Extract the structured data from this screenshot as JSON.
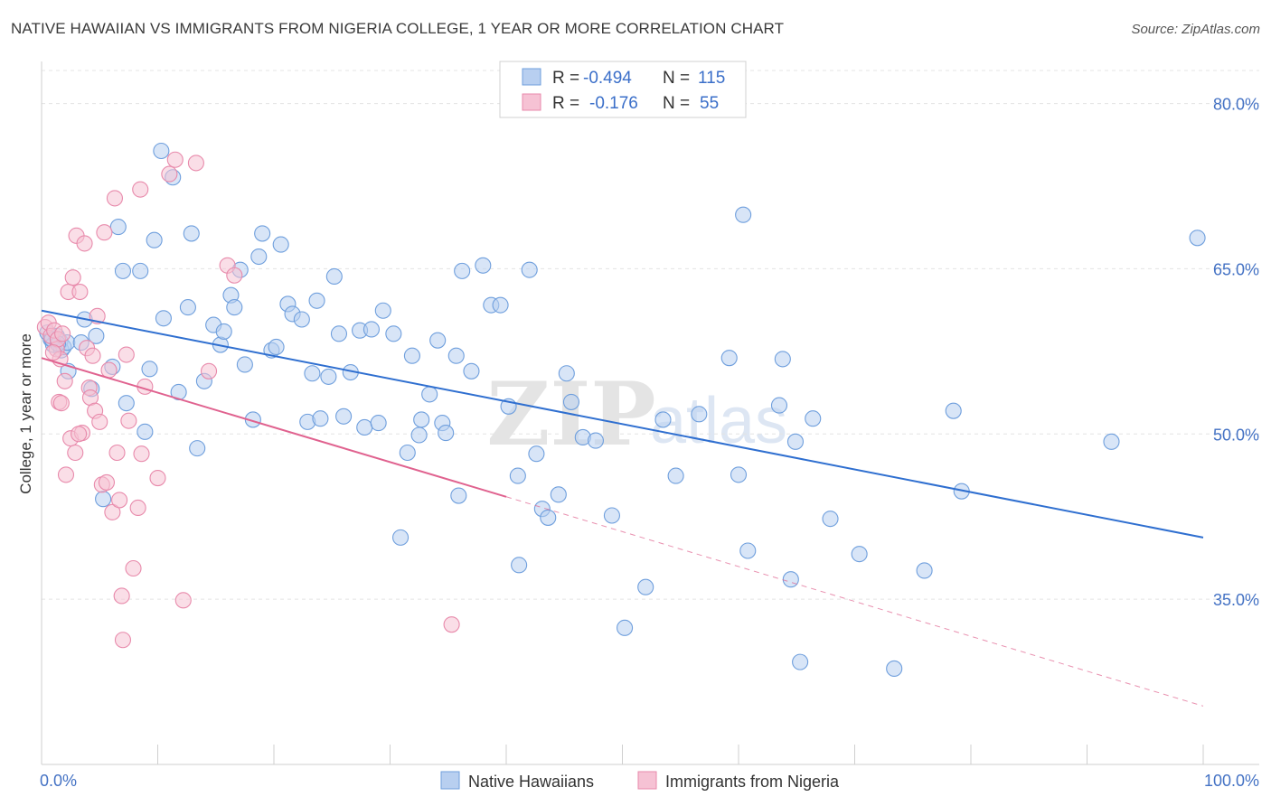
{
  "title": "NATIVE HAWAIIAN VS IMMIGRANTS FROM NIGERIA COLLEGE, 1 YEAR OR MORE CORRELATION CHART",
  "source": "Source: ZipAtlas.com",
  "watermark": {
    "zip": "ZIP",
    "atlas": "atlas"
  },
  "chart_data": {
    "type": "scatter",
    "title": "NATIVE HAWAIIAN VS IMMIGRANTS FROM NIGERIA COLLEGE, 1 YEAR OR MORE CORRELATION CHART",
    "xlabel": "",
    "ylabel": "College, 1 year or more",
    "xlim": [
      0,
      100
    ],
    "ylim": [
      20,
      83
    ],
    "x_tick_labels": [
      "0.0%",
      "100.0%"
    ],
    "y_ticks": [
      35,
      50,
      65,
      80
    ],
    "y_tick_labels": [
      "35.0%",
      "50.0%",
      "65.0%",
      "80.0%"
    ],
    "grid": true,
    "legend_position": "top-center",
    "stats": [
      {
        "series": "Native Hawaiians",
        "r_label": "R =",
        "r": "-0.494",
        "n_label": "N =",
        "n": "115"
      },
      {
        "series": "Immigrants from Nigeria",
        "r_label": "R =",
        "r": "-0.176",
        "n_label": "N =",
        "n": "55"
      }
    ],
    "series": [
      {
        "name": "Native Hawaiians",
        "color": "#6f9fdd",
        "fill": "#b8cff0",
        "line_color": "#2f6fd0",
        "trend": {
          "x0": 0,
          "y0": 61.2,
          "x1": 100,
          "y1": 40.6
        },
        "points": [
          [
            0.5,
            59.2
          ],
          [
            0.8,
            58.6
          ],
          [
            1.0,
            58.1
          ],
          [
            1.3,
            58.9
          ],
          [
            1.6,
            58.4
          ],
          [
            1.7,
            57.6
          ],
          [
            1.9,
            57.9
          ],
          [
            2.2,
            58.3
          ],
          [
            2.3,
            55.7
          ],
          [
            3.4,
            58.3
          ],
          [
            3.7,
            60.4
          ],
          [
            4.3,
            54.1
          ],
          [
            4.7,
            58.9
          ],
          [
            5.3,
            44.1
          ],
          [
            6.1,
            56.1
          ],
          [
            7.0,
            64.8
          ],
          [
            7.3,
            52.8
          ],
          [
            6.6,
            68.8
          ],
          [
            8.5,
            64.8
          ],
          [
            8.9,
            50.2
          ],
          [
            9.3,
            55.9
          ],
          [
            9.7,
            67.6
          ],
          [
            10.5,
            60.5
          ],
          [
            10.3,
            75.7
          ],
          [
            11.3,
            73.3
          ],
          [
            11.8,
            53.8
          ],
          [
            12.6,
            61.5
          ],
          [
            12.9,
            68.2
          ],
          [
            13.4,
            48.7
          ],
          [
            14.0,
            54.8
          ],
          [
            14.8,
            59.9
          ],
          [
            15.4,
            58.1
          ],
          [
            15.7,
            59.3
          ],
          [
            16.3,
            62.6
          ],
          [
            16.6,
            61.5
          ],
          [
            17.1,
            64.9
          ],
          [
            17.5,
            56.3
          ],
          [
            18.2,
            51.3
          ],
          [
            18.7,
            66.1
          ],
          [
            19.0,
            68.2
          ],
          [
            19.8,
            57.6
          ],
          [
            20.2,
            57.9
          ],
          [
            20.6,
            67.2
          ],
          [
            21.2,
            61.8
          ],
          [
            21.6,
            60.9
          ],
          [
            22.4,
            60.4
          ],
          [
            22.9,
            51.1
          ],
          [
            23.3,
            55.5
          ],
          [
            23.7,
            62.1
          ],
          [
            24.0,
            51.4
          ],
          [
            24.7,
            55.2
          ],
          [
            25.2,
            64.3
          ],
          [
            25.6,
            59.1
          ],
          [
            26.0,
            51.6
          ],
          [
            26.6,
            55.6
          ],
          [
            27.4,
            59.4
          ],
          [
            27.8,
            50.6
          ],
          [
            28.4,
            59.5
          ],
          [
            29.0,
            51.0
          ],
          [
            29.4,
            61.2
          ],
          [
            30.3,
            59.1
          ],
          [
            30.9,
            40.6
          ],
          [
            31.5,
            48.3
          ],
          [
            31.9,
            57.1
          ],
          [
            32.5,
            49.9
          ],
          [
            32.7,
            51.3
          ],
          [
            33.4,
            53.6
          ],
          [
            34.1,
            58.5
          ],
          [
            34.5,
            51.0
          ],
          [
            34.8,
            50.1
          ],
          [
            35.7,
            57.1
          ],
          [
            35.9,
            44.4
          ],
          [
            36.2,
            64.8
          ],
          [
            37.0,
            55.7
          ],
          [
            38.0,
            65.3
          ],
          [
            38.7,
            61.7
          ],
          [
            39.5,
            61.7
          ],
          [
            40.2,
            52.5
          ],
          [
            41.0,
            46.2
          ],
          [
            41.1,
            38.1
          ],
          [
            42.0,
            64.9
          ],
          [
            43.1,
            43.2
          ],
          [
            42.6,
            48.2
          ],
          [
            43.6,
            42.4
          ],
          [
            44.5,
            44.5
          ],
          [
            45.2,
            55.5
          ],
          [
            45.6,
            52.9
          ],
          [
            46.6,
            49.7
          ],
          [
            47.7,
            49.4
          ],
          [
            49.1,
            42.6
          ],
          [
            50.2,
            32.4
          ],
          [
            52.0,
            36.1
          ],
          [
            53.5,
            51.3
          ],
          [
            54.6,
            46.2
          ],
          [
            56.6,
            51.8
          ],
          [
            59.2,
            56.9
          ],
          [
            60.0,
            46.3
          ],
          [
            60.4,
            69.9
          ],
          [
            60.8,
            39.4
          ],
          [
            63.5,
            52.6
          ],
          [
            63.8,
            56.8
          ],
          [
            64.5,
            36.8
          ],
          [
            64.9,
            49.3
          ],
          [
            65.3,
            29.3
          ],
          [
            66.4,
            51.4
          ],
          [
            67.9,
            42.3
          ],
          [
            70.4,
            39.1
          ],
          [
            73.4,
            28.7
          ],
          [
            76.0,
            37.6
          ],
          [
            78.5,
            52.1
          ],
          [
            79.2,
            44.8
          ],
          [
            92.1,
            49.3
          ],
          [
            99.5,
            67.8
          ],
          [
            0.9,
            58.6
          ],
          [
            1.4,
            58.2
          ]
        ]
      },
      {
        "name": "Immigrants from Nigeria",
        "color": "#e88aab",
        "fill": "#f6c2d4",
        "line_color": "#e0628f",
        "trend": {
          "x0": 0,
          "y0": 56.9,
          "x1": 40.0,
          "y1": 44.3
        },
        "trend_dashed": {
          "x0": 40.0,
          "y0": 44.3,
          "x1": 100,
          "y1": 25.3
        },
        "points": [
          [
            0.3,
            59.7
          ],
          [
            0.6,
            60.1
          ],
          [
            0.8,
            58.9
          ],
          [
            1.1,
            59.4
          ],
          [
            1.3,
            57.7
          ],
          [
            1.6,
            56.8
          ],
          [
            1.4,
            58.6
          ],
          [
            1.8,
            59.1
          ],
          [
            1.5,
            52.9
          ],
          [
            1.7,
            52.8
          ],
          [
            2.0,
            54.8
          ],
          [
            2.1,
            46.3
          ],
          [
            2.3,
            62.9
          ],
          [
            2.5,
            49.6
          ],
          [
            2.7,
            64.2
          ],
          [
            2.9,
            48.3
          ],
          [
            3.0,
            68.0
          ],
          [
            3.3,
            62.9
          ],
          [
            3.5,
            50.1
          ],
          [
            3.7,
            67.3
          ],
          [
            3.9,
            57.8
          ],
          [
            4.1,
            54.2
          ],
          [
            4.2,
            53.3
          ],
          [
            4.4,
            57.1
          ],
          [
            4.6,
            52.1
          ],
          [
            4.8,
            60.7
          ],
          [
            5.0,
            51.1
          ],
          [
            5.2,
            45.4
          ],
          [
            5.4,
            68.3
          ],
          [
            5.6,
            45.6
          ],
          [
            5.8,
            55.8
          ],
          [
            6.1,
            42.9
          ],
          [
            6.3,
            71.4
          ],
          [
            6.5,
            48.3
          ],
          [
            6.7,
            44.0
          ],
          [
            6.9,
            35.3
          ],
          [
            7.0,
            31.3
          ],
          [
            7.3,
            57.2
          ],
          [
            7.5,
            51.2
          ],
          [
            7.9,
            37.8
          ],
          [
            8.3,
            43.3
          ],
          [
            8.5,
            72.2
          ],
          [
            8.6,
            48.2
          ],
          [
            8.9,
            54.3
          ],
          [
            10.0,
            46.0
          ],
          [
            11.0,
            73.6
          ],
          [
            11.5,
            74.9
          ],
          [
            12.2,
            34.9
          ],
          [
            13.3,
            74.6
          ],
          [
            14.4,
            55.7
          ],
          [
            16.0,
            65.3
          ],
          [
            16.6,
            64.4
          ],
          [
            35.3,
            32.7
          ],
          [
            3.2,
            50.0
          ],
          [
            1.0,
            57.4
          ]
        ]
      }
    ]
  },
  "bottom_legend": [
    "Native Hawaiians",
    "Immigrants from Nigeria"
  ]
}
